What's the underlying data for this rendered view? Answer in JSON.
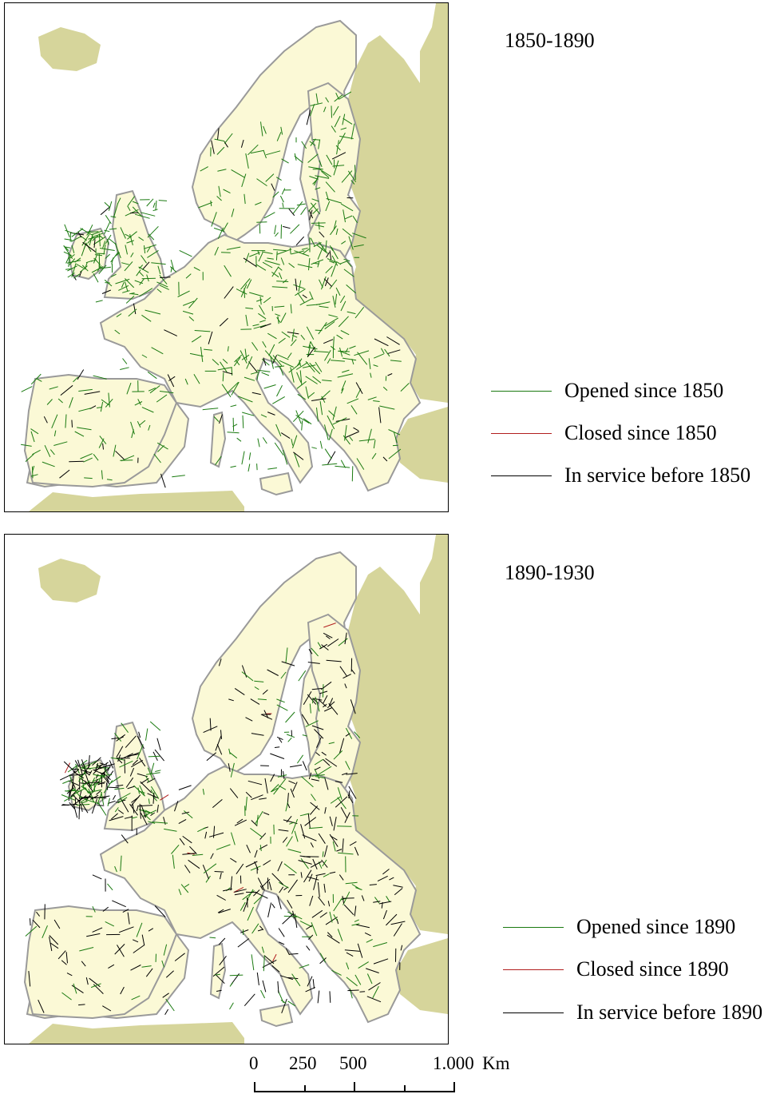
{
  "colors": {
    "land": "#fbf9d6",
    "land_outside": "#d6d59b",
    "coast": "#9a9a9a",
    "sea": "#ffffff",
    "opened": "#1a7a10",
    "closed": "#b21e1e",
    "in_service": "#000000"
  },
  "panels": [
    {
      "period": "1850-1890",
      "legend": [
        {
          "label": "Opened since 1850",
          "color_key": "opened"
        },
        {
          "label": "Closed since 1850",
          "color_key": "closed"
        },
        {
          "label": "In service before 1850",
          "color_key": "in_service"
        }
      ],
      "network": {
        "opened_share": 0.9,
        "closed_share": 0.0,
        "in_service_share": 0.1
      }
    },
    {
      "period": "1890-1930",
      "legend": [
        {
          "label": "Opened since 1890",
          "color_key": "opened"
        },
        {
          "label": "Closed since 1890",
          "color_key": "closed"
        },
        {
          "label": "In service before 1890",
          "color_key": "in_service"
        }
      ],
      "network": {
        "opened_share": 0.35,
        "closed_share": 0.01,
        "in_service_share": 0.64
      }
    }
  ],
  "scale": {
    "ticks": [
      "0",
      "250",
      "500",
      "1.000"
    ],
    "unit": "Km"
  }
}
